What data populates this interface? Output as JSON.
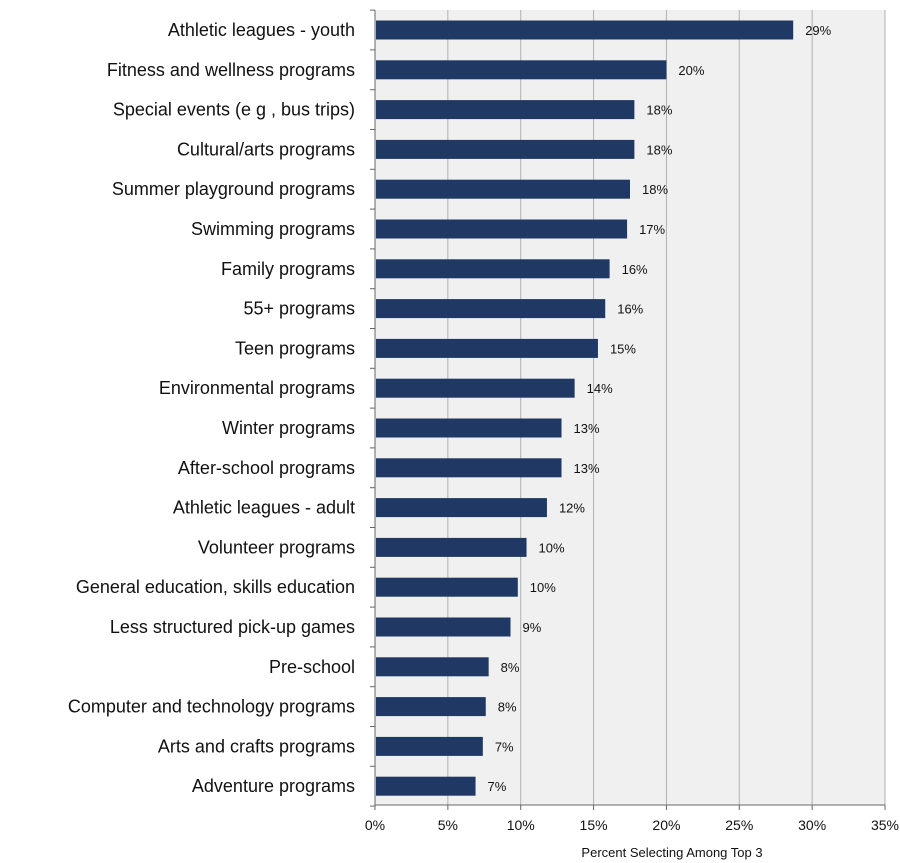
{
  "chart_data": {
    "type": "bar",
    "orientation": "horizontal",
    "categories": [
      "Athletic leagues - youth",
      "Fitness and wellness programs",
      "Special events (e g , bus trips)",
      "Cultural/arts programs",
      "Summer playground programs",
      "Swimming programs",
      "Family programs",
      "55+ programs",
      "Teen programs",
      "Environmental programs",
      "Winter programs",
      "After-school programs",
      "Athletic leagues - adult",
      "Volunteer programs",
      "General education, skills education",
      "Less structured pick-up games",
      "Pre-school",
      "Computer and technology programs",
      "Arts and crafts programs",
      "Adventure programs"
    ],
    "values": [
      28.7,
      20.0,
      17.8,
      17.8,
      17.5,
      17.3,
      16.1,
      15.8,
      15.3,
      13.7,
      12.8,
      12.8,
      11.8,
      10.4,
      9.8,
      9.3,
      7.8,
      7.6,
      7.4,
      6.9
    ],
    "data_labels": [
      "29%",
      "20%",
      "18%",
      "18%",
      "18%",
      "17%",
      "16%",
      "16%",
      "15%",
      "14%",
      "13%",
      "13%",
      "12%",
      "10%",
      "10%",
      "9%",
      "8%",
      "8%",
      "7%",
      "7%"
    ],
    "x_ticks": [
      0,
      5,
      10,
      15,
      20,
      25,
      30,
      35
    ],
    "x_tick_labels": [
      "0%",
      "5%",
      "10%",
      "15%",
      "20%",
      "25%",
      "30%",
      "35%"
    ],
    "xlim": [
      0,
      35
    ],
    "xlabel": "Percent Selecting Among Top 3",
    "ylabel": "",
    "title": "",
    "grid": "vertical",
    "bar_color": "#1f3864",
    "plot_background": "#f0f0f0",
    "gridline_color": "#b0b0b0"
  }
}
